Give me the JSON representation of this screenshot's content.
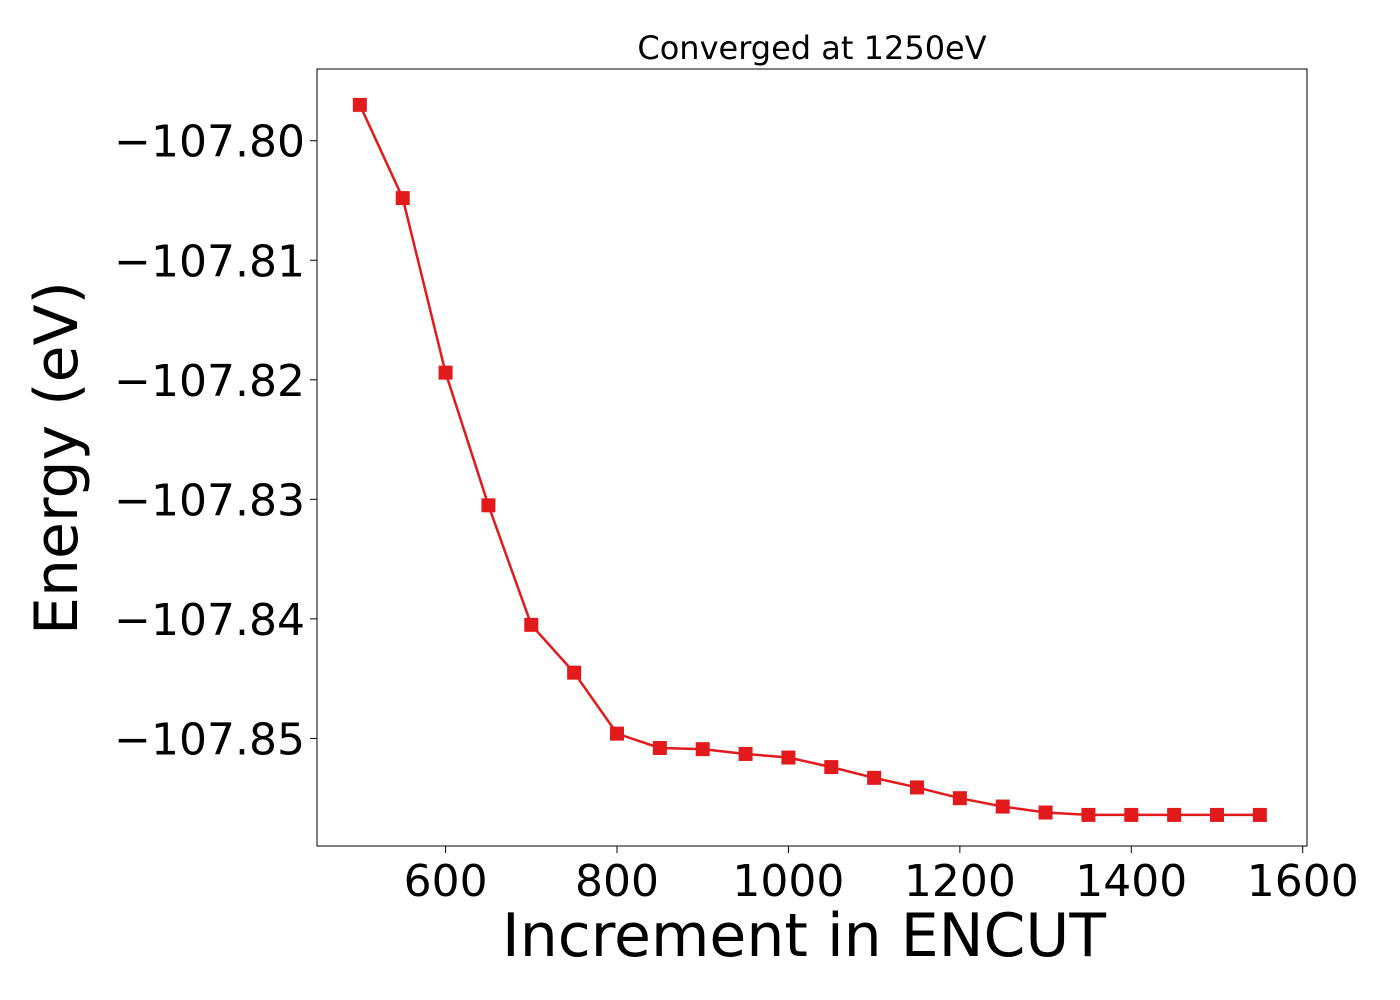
{
  "chart_data": {
    "type": "line",
    "title": "Converged at 1250eV",
    "xlabel": "Increment in ENCUT",
    "ylabel": "Energy (eV)",
    "xlim": [
      450,
      1605
    ],
    "ylim": [
      -107.859,
      -107.794
    ],
    "x_ticks": [
      600,
      800,
      1000,
      1200,
      1400,
      1600
    ],
    "x_tick_labels": [
      "600",
      "800",
      "1000",
      "1200",
      "1400",
      "1600"
    ],
    "y_ticks": [
      -107.8,
      -107.81,
      -107.82,
      -107.83,
      -107.84,
      -107.85
    ],
    "y_tick_labels": [
      "−107.80",
      "−107.81",
      "−107.82",
      "−107.83",
      "−107.84",
      "−107.85"
    ],
    "grid": false,
    "legend": "none",
    "series": [
      {
        "color": "#e31a1c",
        "marker": "square",
        "x": [
          500,
          550,
          600,
          650,
          700,
          750,
          800,
          850,
          900,
          950,
          1000,
          1050,
          1100,
          1150,
          1200,
          1250,
          1300,
          1350,
          1400,
          1450,
          1500,
          1550
        ],
        "y": [
          -107.797,
          -107.8048,
          -107.8194,
          -107.8305,
          -107.8405,
          -107.8445,
          -107.8496,
          -107.8508,
          -107.8509,
          -107.8513,
          -107.8516,
          -107.8524,
          -107.8533,
          -107.8541,
          -107.855,
          -107.8557,
          -107.8562,
          -107.8564,
          -107.8564,
          -107.8564,
          -107.8564,
          -107.8564
        ]
      }
    ]
  }
}
